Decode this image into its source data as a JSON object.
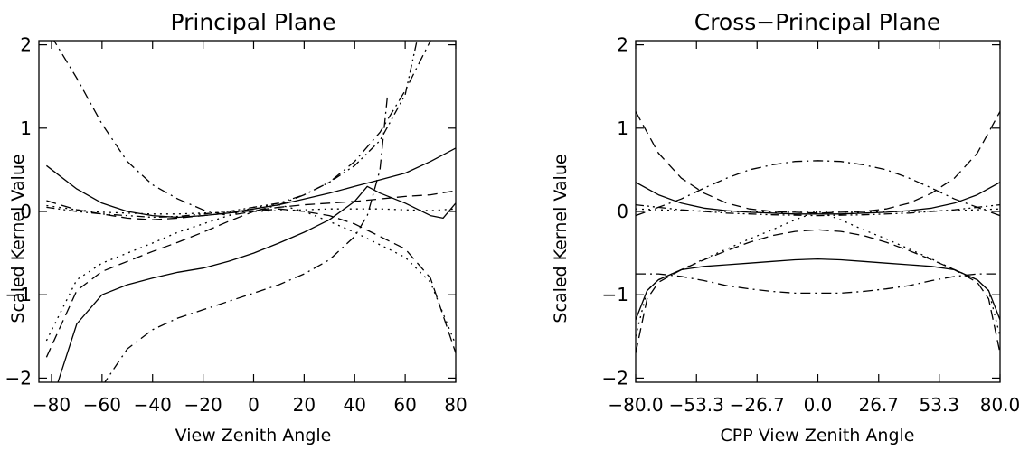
{
  "chart_data": [
    {
      "type": "line",
      "title": "Principal Plane",
      "xlabel": "View Zenith Angle",
      "ylabel": "Scaled Kernel Value",
      "xlim": [
        -85,
        80
      ],
      "ylim": [
        -2.05,
        2.05
      ],
      "xticks": [
        -80,
        -60,
        -40,
        -20,
        0,
        20,
        40,
        60,
        80
      ],
      "xtick_labels": [
        "−80",
        "−60",
        "−40",
        "−20",
        "0",
        "20",
        "40",
        "60",
        "80"
      ],
      "yticks": [
        -2,
        -1,
        0,
        1,
        2
      ],
      "ytick_labels": [
        "−2",
        "−1",
        "0",
        "1",
        "2"
      ],
      "grid": false,
      "series": [
        {
          "style": "solid",
          "x": [
            -82,
            -70,
            -60,
            -50,
            -40,
            -30,
            -20,
            -10,
            0,
            10,
            20,
            30,
            40,
            50,
            60,
            70,
            80
          ],
          "y": [
            0.55,
            0.27,
            0.1,
            0,
            -0.05,
            -0.07,
            -0.05,
            -0.02,
            0.03,
            0.08,
            0.15,
            0.22,
            0.3,
            0.38,
            0.46,
            0.6,
            0.76
          ]
        },
        {
          "style": "dash",
          "x": [
            -82,
            -70,
            -60,
            -50,
            -40,
            -30,
            -20,
            -10,
            0,
            10,
            20,
            30,
            40,
            50,
            60,
            70,
            80
          ],
          "y": [
            0.13,
            0.02,
            -0.03,
            -0.08,
            -0.1,
            -0.08,
            -0.05,
            -0.02,
            0.01,
            0.05,
            0.08,
            0.1,
            0.12,
            0.15,
            0.18,
            0.2,
            0.25
          ]
        },
        {
          "style": "dot",
          "x": [
            -82,
            -70,
            -60,
            -50,
            -40,
            -30,
            -20,
            -10,
            0,
            10,
            20,
            30,
            40,
            50,
            60,
            70,
            80
          ],
          "y": [
            0.07,
            0.02,
            -0.01,
            -0.02,
            -0.03,
            -0.03,
            -0.02,
            -0.01,
            0,
            0.01,
            0.02,
            0.03,
            0.03,
            0.03,
            0.02,
            0.01,
            0.03
          ]
        },
        {
          "style": "dashdot",
          "x": [
            -80,
            -70,
            -60,
            -50,
            -40,
            -30,
            -20,
            -10,
            0,
            10,
            20,
            30,
            40,
            50,
            60,
            70,
            80
          ],
          "y": [
            2.1,
            1.6,
            1.05,
            0.6,
            0.32,
            0.15,
            0.02,
            -0.05,
            0,
            0.08,
            0.2,
            0.35,
            0.6,
            0.95,
            1.45,
            2.05,
            2.6
          ]
        },
        {
          "style": "dashdotdot",
          "x": [
            -82,
            -70,
            -60,
            -50,
            -40,
            -30,
            -20,
            -10,
            0,
            10,
            20,
            30,
            40,
            50,
            60,
            65
          ],
          "y": [
            0.05,
            0,
            -0.03,
            -0.05,
            -0.07,
            -0.06,
            -0.03,
            0,
            0.05,
            0.1,
            0.2,
            0.35,
            0.55,
            0.85,
            1.4,
            2.1
          ]
        },
        {
          "style": "solid",
          "x": [
            -78,
            -70,
            -60,
            -50,
            -40,
            -30,
            -20,
            -10,
            0,
            10,
            20,
            30,
            40,
            45,
            50,
            60,
            70,
            75,
            80
          ],
          "y": [
            -2.1,
            -1.35,
            -1.0,
            -0.88,
            -0.8,
            -0.73,
            -0.68,
            -0.6,
            -0.5,
            -0.38,
            -0.25,
            -0.1,
            0.12,
            0.3,
            0.22,
            0.1,
            -0.05,
            -0.08,
            0.1
          ]
        },
        {
          "style": "dash",
          "x": [
            -82,
            -70,
            -60,
            -50,
            -40,
            -30,
            -20,
            -10,
            0,
            10,
            20,
            30,
            40,
            50,
            60,
            70,
            80
          ],
          "y": [
            -1.75,
            -0.95,
            -0.72,
            -0.6,
            -0.48,
            -0.37,
            -0.25,
            -0.12,
            0,
            0.03,
            0,
            -0.05,
            -0.15,
            -0.3,
            -0.45,
            -0.8,
            -1.7
          ]
        },
        {
          "style": "dot",
          "x": [
            -82,
            -70,
            -60,
            -50,
            -40,
            -30,
            -20,
            -10,
            0,
            10,
            20,
            30,
            40,
            50,
            60,
            70,
            80
          ],
          "y": [
            -1.55,
            -0.82,
            -0.62,
            -0.5,
            -0.38,
            -0.25,
            -0.15,
            -0.05,
            0.05,
            0.08,
            0,
            -0.12,
            -0.25,
            -0.4,
            -0.55,
            -0.85,
            -1.6
          ]
        },
        {
          "style": "dashdot",
          "x": [
            -60,
            -50,
            -40,
            -30,
            -20,
            -10,
            0,
            10,
            20,
            30,
            40,
            45,
            50,
            53
          ],
          "y": [
            -2.1,
            -1.65,
            -1.42,
            -1.28,
            -1.18,
            -1.08,
            -0.98,
            -0.88,
            -0.75,
            -0.58,
            -0.3,
            -0.05,
            0.5,
            1.4
          ]
        }
      ]
    },
    {
      "type": "line",
      "title": "Cross−Principal Plane",
      "xlabel": "CPP View Zenith Angle",
      "ylabel": "Scaled Kernel Value",
      "xlim": [
        -80,
        80
      ],
      "ylim": [
        -2.05,
        2.05
      ],
      "xticks": [
        -80,
        -53.3,
        -26.7,
        0,
        26.7,
        53.3,
        80
      ],
      "xtick_labels": [
        "−80.0",
        "−53.3",
        "−26.7",
        "0.0",
        "26.7",
        "53.3",
        "80.0"
      ],
      "yticks": [
        -2,
        -1,
        0,
        1,
        2
      ],
      "ytick_labels": [
        "−2",
        "−1",
        "0",
        "1",
        "2"
      ],
      "grid": false,
      "series": [
        {
          "style": "solid",
          "x": [
            -80,
            -70,
            -60,
            -50,
            -40,
            -30,
            -20,
            -10,
            0,
            10,
            20,
            30,
            40,
            50,
            60,
            70,
            80
          ],
          "y": [
            0.35,
            0.2,
            0.1,
            0.04,
            0.01,
            -0.01,
            -0.02,
            -0.03,
            -0.03,
            -0.03,
            -0.02,
            -0.01,
            0.01,
            0.04,
            0.1,
            0.2,
            0.35
          ]
        },
        {
          "style": "dash",
          "x": [
            -80,
            -70,
            -60,
            -50,
            -40,
            -30,
            -20,
            -10,
            0,
            10,
            20,
            30,
            40,
            50,
            60,
            70,
            80
          ],
          "y": [
            1.2,
            0.7,
            0.4,
            0.22,
            0.1,
            0.03,
            0,
            -0.01,
            -0.02,
            -0.01,
            0,
            0.03,
            0.1,
            0.22,
            0.4,
            0.7,
            1.2
          ]
        },
        {
          "style": "dot",
          "x": [
            -80,
            -60,
            -40,
            -20,
            0,
            20,
            40,
            60,
            80
          ],
          "y": [
            0.03,
            0.01,
            0,
            -0.01,
            -0.01,
            -0.01,
            0,
            0.01,
            0.03
          ]
        },
        {
          "style": "dashdot",
          "x": [
            -80,
            -70,
            -60,
            -50,
            -40,
            -30,
            -20,
            -10,
            0,
            10,
            20,
            30,
            40,
            50,
            60,
            70,
            80
          ],
          "y": [
            -0.05,
            0.05,
            0.15,
            0.28,
            0.4,
            0.5,
            0.56,
            0.6,
            0.61,
            0.6,
            0.56,
            0.5,
            0.4,
            0.28,
            0.15,
            0.05,
            -0.05
          ]
        },
        {
          "style": "dashdotdot",
          "x": [
            -80,
            -60,
            -40,
            -20,
            0,
            20,
            40,
            60,
            80
          ],
          "y": [
            0.08,
            0.02,
            -0.02,
            -0.04,
            -0.05,
            -0.04,
            -0.02,
            0.02,
            0.08
          ]
        },
        {
          "style": "solid",
          "x": [
            -80,
            -75,
            -70,
            -60,
            -50,
            -40,
            -30,
            -20,
            -10,
            0,
            10,
            20,
            30,
            40,
            50,
            60,
            70,
            75,
            80
          ],
          "y": [
            -1.3,
            -0.95,
            -0.82,
            -0.7,
            -0.66,
            -0.64,
            -0.62,
            -0.6,
            -0.58,
            -0.57,
            -0.58,
            -0.6,
            -0.62,
            -0.64,
            -0.66,
            -0.7,
            -0.82,
            -0.95,
            -1.3
          ]
        },
        {
          "style": "dash",
          "x": [
            -80,
            -75,
            -70,
            -60,
            -50,
            -40,
            -30,
            -20,
            -10,
            0,
            10,
            20,
            30,
            40,
            50,
            60,
            70,
            75,
            80
          ],
          "y": [
            -1.7,
            -1.05,
            -0.85,
            -0.7,
            -0.58,
            -0.47,
            -0.37,
            -0.29,
            -0.24,
            -0.22,
            -0.24,
            -0.29,
            -0.37,
            -0.47,
            -0.58,
            -0.7,
            -0.85,
            -1.05,
            -1.7
          ]
        },
        {
          "style": "dot",
          "x": [
            -80,
            -75,
            -70,
            -60,
            -50,
            -40,
            -30,
            -20,
            -10,
            0,
            10,
            20,
            30,
            40,
            50,
            60,
            70,
            75,
            80
          ],
          "y": [
            -1.5,
            -0.95,
            -0.82,
            -0.7,
            -0.57,
            -0.45,
            -0.33,
            -0.22,
            -0.1,
            0,
            -0.1,
            -0.22,
            -0.33,
            -0.45,
            -0.57,
            -0.7,
            -0.82,
            -0.95,
            -1.5
          ]
        },
        {
          "style": "dashdot",
          "x": [
            -80,
            -70,
            -60,
            -50,
            -40,
            -30,
            -20,
            -10,
            0,
            10,
            20,
            30,
            40,
            50,
            60,
            70,
            80
          ],
          "y": [
            -0.75,
            -0.75,
            -0.78,
            -0.83,
            -0.89,
            -0.93,
            -0.96,
            -0.98,
            -0.98,
            -0.98,
            -0.96,
            -0.93,
            -0.89,
            -0.83,
            -0.78,
            -0.75,
            -0.75
          ]
        }
      ]
    }
  ]
}
